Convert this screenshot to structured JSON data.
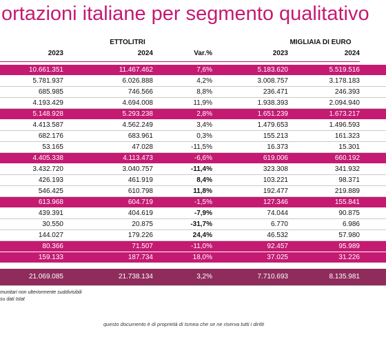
{
  "title": "ortazioni italiane per segmento qualitativo",
  "groups": {
    "volume": "ETTOLITRI",
    "value": "MIGLIAIA DI EURO"
  },
  "headers": [
    "2023",
    "2024",
    "Var.%",
    "2023",
    "2024"
  ],
  "rows": [
    {
      "hl": true,
      "cells": [
        "10.661.351",
        "11.467.462",
        "7,6%",
        "5.183.620",
        "5.519.516"
      ]
    },
    {
      "hl": false,
      "cells": [
        "5.781.937",
        "6.026.888",
        "4,2%",
        "3.008.757",
        "3.178.183"
      ]
    },
    {
      "hl": false,
      "cells": [
        "685.985",
        "746.566",
        "8,8%",
        "236.471",
        "246.393"
      ]
    },
    {
      "hl": false,
      "cells": [
        "4.193.429",
        "4.694.008",
        "11,9%",
        "1.938.393",
        "2.094.940"
      ]
    },
    {
      "hl": true,
      "cells": [
        "5.148.928",
        "5.293.238",
        "2,8%",
        "1.651.239",
        "1.673.217"
      ]
    },
    {
      "hl": false,
      "cells": [
        "4.413.587",
        "4.562.249",
        "3,4%",
        "1.479.653",
        "1.496.593"
      ]
    },
    {
      "hl": false,
      "cells": [
        "682.176",
        "683.961",
        "0,3%",
        "155.213",
        "161.323"
      ]
    },
    {
      "hl": false,
      "cells": [
        "53.165",
        "47.028",
        "-11,5%",
        "16.373",
        "15.301"
      ]
    },
    {
      "hl": true,
      "cells": [
        "4.405.338",
        "4.113.473",
        "-6,6%",
        "619.006",
        "660.192"
      ]
    },
    {
      "hl": false,
      "bold": true,
      "cells": [
        "3.432.720",
        "3.040.757",
        "-11,4%",
        "323.308",
        "341.932"
      ]
    },
    {
      "hl": false,
      "bold": true,
      "cells": [
        "426.193",
        "461.919",
        "8,4%",
        "103.221",
        "98.371"
      ]
    },
    {
      "hl": false,
      "bold": true,
      "cells": [
        "546.425",
        "610.798",
        "11,8%",
        "192.477",
        "219.889"
      ]
    },
    {
      "hl": true,
      "cells": [
        "613.968",
        "604.719",
        "-1,5%",
        "127.346",
        "155.841"
      ]
    },
    {
      "hl": false,
      "bold": true,
      "cells": [
        "439.391",
        "404.619",
        "-7,9%",
        "74.044",
        "90.875"
      ]
    },
    {
      "hl": false,
      "bold": true,
      "cells": [
        "30.550",
        "20.875",
        "-31,7%",
        "6.770",
        "6.986"
      ]
    },
    {
      "hl": false,
      "bold": true,
      "cells": [
        "144.027",
        "179.226",
        "24,4%",
        "46.532",
        "57.980"
      ]
    },
    {
      "hl": true,
      "cells": [
        "80.366",
        "71.507",
        "-11,0%",
        "92.457",
        "95.989"
      ]
    },
    {
      "hl": true,
      "cells": [
        "159.133",
        "187.734",
        "18,0%",
        "37.025",
        "31.226"
      ]
    }
  ],
  "total": [
    "21.069.085",
    "21.738.134",
    "3,2%",
    "7.710.693",
    "8.135.981"
  ],
  "notes": [
    "munitari non ulteriormente suddivisibili",
    "su dati Istat"
  ],
  "footer": "questo documento è di proprietà di Ismea che se ne riserva tutti i diritti"
}
